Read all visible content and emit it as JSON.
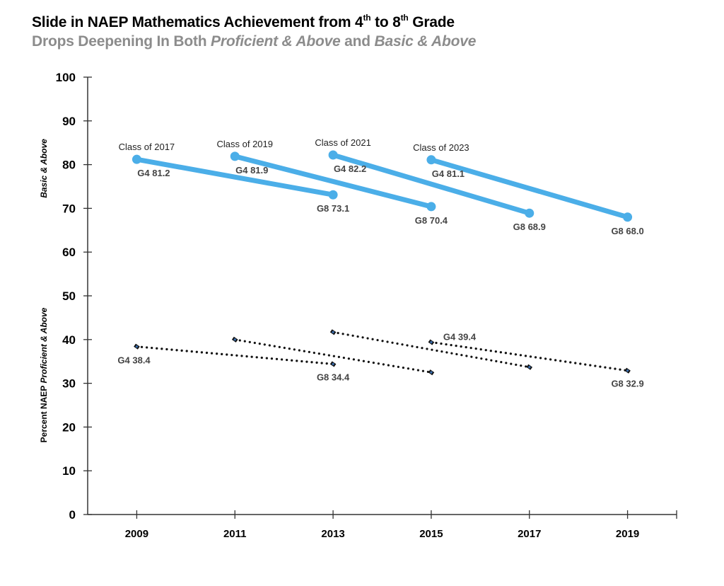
{
  "chart_data": {
    "type": "line",
    "title_parts": {
      "pre": "Slide in NAEP Mathematics Achievement from 4",
      "sup1": "th",
      "mid": " to 8",
      "sup2": "th",
      "post": " Grade"
    },
    "title": "Slide in NAEP Mathematics Achievement from 4th to 8th Grade",
    "subtitle_parts": {
      "a": "Drops Deepening In Both ",
      "b": "Proficient & Above",
      "c": " and ",
      "d": "Basic & Above"
    },
    "subtitle": "Drops Deepening In Both Proficient & Above and Basic & Above",
    "ylabel_lower_parts": {
      "a": "Percent NAEP ",
      "b": "Proficient & Above"
    },
    "ylabel_upper": "Basic & Above",
    "xlabel": "",
    "xlim": [
      2008,
      2020
    ],
    "ylim": [
      0,
      100
    ],
    "x_ticks": [
      2009,
      2011,
      2013,
      2015,
      2017,
      2019
    ],
    "y_ticks": [
      0,
      10,
      20,
      30,
      40,
      50,
      60,
      70,
      80,
      90,
      100
    ],
    "grid": false,
    "colors": {
      "basic": "#4BAEE8",
      "proficient": "#111111",
      "marker_accent": "#3a6fb0"
    },
    "series": [
      {
        "name": "Class of 2017 – Basic & Above",
        "group": "basic",
        "cohort": "Class of 2017",
        "x": [
          2009,
          2013
        ],
        "values": [
          81.2,
          73.1
        ],
        "labels": [
          "G4 81.2",
          "G8 73.1"
        ]
      },
      {
        "name": "Class of 2019 – Basic & Above",
        "group": "basic",
        "cohort": "Class of 2019",
        "x": [
          2011,
          2015
        ],
        "values": [
          81.9,
          70.4
        ],
        "labels": [
          "G4 81.9",
          "G8 70.4"
        ]
      },
      {
        "name": "Class of 2021 – Basic & Above",
        "group": "basic",
        "cohort": "Class of 2021",
        "x": [
          2013,
          2017
        ],
        "values": [
          82.2,
          68.9
        ],
        "labels": [
          "G4 82.2",
          "G8 68.9"
        ]
      },
      {
        "name": "Class of 2023 – Basic & Above",
        "group": "basic",
        "cohort": "Class of 2023",
        "x": [
          2015,
          2019
        ],
        "values": [
          81.1,
          68.0
        ],
        "labels": [
          "G4 81.1",
          "G8 68.0"
        ]
      },
      {
        "name": "Class of 2017 – Proficient & Above",
        "group": "proficient",
        "x": [
          2009,
          2013
        ],
        "values": [
          38.4,
          34.4
        ],
        "labels": [
          "G4 38.4",
          "G8 34.4"
        ]
      },
      {
        "name": "Class of 2019 – Proficient & Above",
        "group": "proficient",
        "x": [
          2011,
          2015
        ],
        "values": [
          40.0,
          32.5
        ],
        "labels": [
          "",
          ""
        ]
      },
      {
        "name": "Class of 2021 – Proficient & Above",
        "group": "proficient",
        "x": [
          2013,
          2017
        ],
        "values": [
          41.7,
          33.7
        ],
        "labels": [
          "",
          ""
        ]
      },
      {
        "name": "Class of 2023 – Proficient & Above",
        "group": "proficient",
        "x": [
          2015,
          2019
        ],
        "values": [
          39.4,
          32.9
        ],
        "labels": [
          "G4 39.4",
          "G8 32.9"
        ]
      }
    ]
  }
}
